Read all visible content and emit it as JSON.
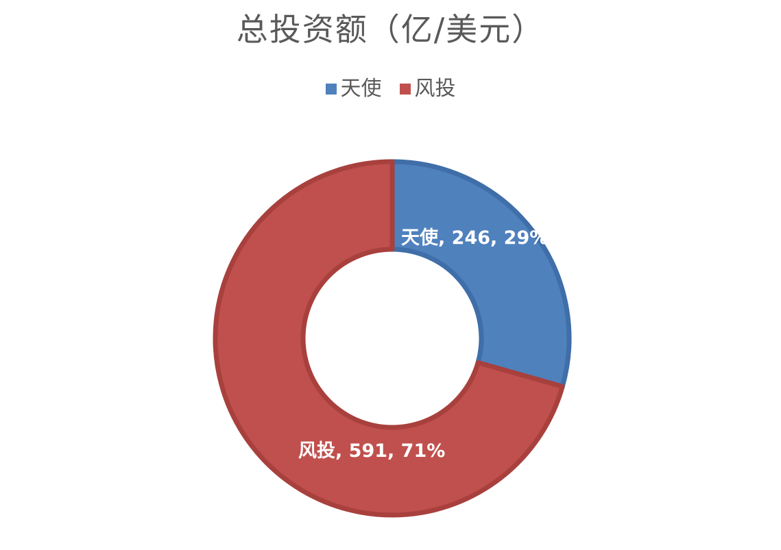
{
  "chart_data": {
    "type": "pie",
    "variant": "doughnut",
    "title": "总投资额（亿/美元）",
    "legend_position": "top",
    "categories": [
      "天使",
      "风投"
    ],
    "values": [
      246,
      591
    ],
    "percents": [
      "29%",
      "71%"
    ],
    "data_labels": [
      "天使, 246, 29%",
      "风投, 591, 71%"
    ],
    "colors": [
      "#4f81bd",
      "#c0504d"
    ],
    "border_colors": [
      "#3f6ea8",
      "#a8403d"
    ]
  }
}
